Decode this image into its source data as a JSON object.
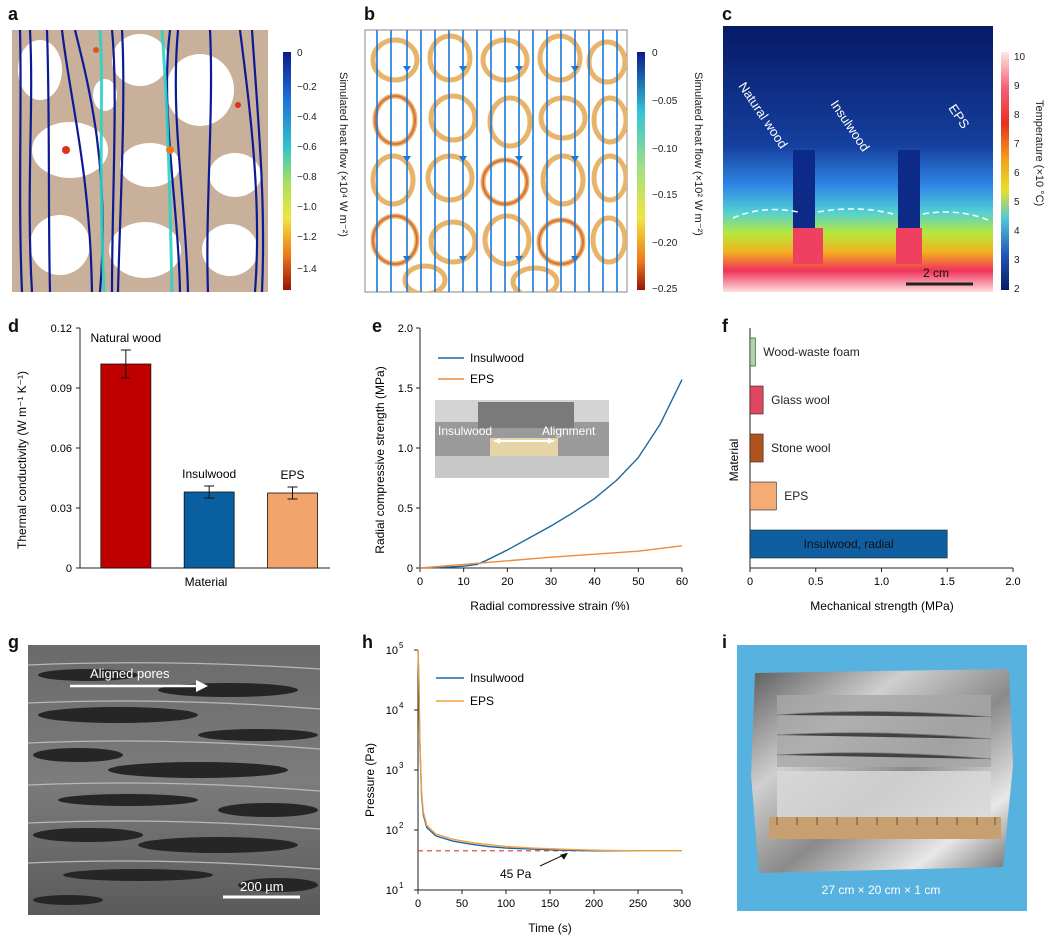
{
  "panel_labels": {
    "a": "a",
    "b": "b",
    "c": "c",
    "d": "d",
    "e": "e",
    "f": "f",
    "g": "g",
    "h": "h",
    "i": "i"
  },
  "panel_a": {
    "colorbar_label": "Simulated heat flow (×10⁴ W m⁻²)",
    "ticks": [
      "0",
      "−0.2",
      "−0.4",
      "−0.6",
      "−0.8",
      "−1.0",
      "−1.2",
      "−1.4"
    ]
  },
  "panel_b": {
    "colorbar_label": "Simulated heat flow (×10² W m⁻²)",
    "ticks": [
      "0",
      "−0.05",
      "−0.10",
      "−0.15",
      "−0.20",
      "−0.25"
    ]
  },
  "panel_c": {
    "labels": [
      "Natural wood",
      "Insulwood",
      "EPS"
    ],
    "scale_bar": "2 cm",
    "colorbar_label": "Temperature (×10 °C)",
    "ticks": [
      "10",
      "9",
      "8",
      "7",
      "6",
      "5",
      "4",
      "3",
      "2"
    ]
  },
  "chart_data": [
    {
      "id": "d",
      "type": "bar",
      "categories": [
        "Natural wood",
        "Insulwood",
        "EPS"
      ],
      "values": [
        0.102,
        0.038,
        0.0375
      ],
      "errors": [
        0.007,
        0.003,
        0.003
      ],
      "colors": [
        "#c00000",
        "#0a5fa0",
        "#f2a46c"
      ],
      "xlabel": "Material",
      "ylabel": "Thermal conductivity (W m⁻¹ K⁻¹)",
      "ylim": [
        0,
        0.12
      ],
      "yticks": [
        "0",
        "0.03",
        "0.06",
        "0.09",
        "0.12"
      ],
      "data_labels": [
        "Natural wood",
        "Insulwood",
        "EPS"
      ]
    },
    {
      "id": "e",
      "type": "line",
      "xlabel": "Radial compressive strain (%)",
      "ylabel": "Radial compressive strength (MPa)",
      "xlim": [
        0,
        60
      ],
      "ylim": [
        0,
        2.0
      ],
      "xticks": [
        "0",
        "10",
        "20",
        "30",
        "40",
        "50",
        "60"
      ],
      "yticks": [
        "0",
        "0.5",
        "1.0",
        "1.5",
        "2.0"
      ],
      "series": [
        {
          "name": "Insulwood",
          "color": "#1a6aa0",
          "x": [
            0,
            5,
            10,
            13,
            15,
            20,
            25,
            30,
            35,
            40,
            45,
            50,
            55,
            60
          ],
          "y": [
            0,
            0.005,
            0.015,
            0.03,
            0.06,
            0.15,
            0.25,
            0.35,
            0.46,
            0.58,
            0.73,
            0.92,
            1.2,
            1.57
          ]
        },
        {
          "name": "EPS",
          "color": "#f08a3c",
          "x": [
            0,
            10,
            20,
            30,
            40,
            50,
            60
          ],
          "y": [
            0,
            0.03,
            0.06,
            0.09,
            0.115,
            0.14,
            0.185
          ]
        }
      ],
      "inset_labels": [
        "Insulwood",
        "Alignment"
      ]
    },
    {
      "id": "f",
      "type": "bar",
      "orientation": "horizontal",
      "categories": [
        "Wood-waste foam",
        "Glass wool",
        "Stone wool",
        "EPS",
        "Insulwood, radial"
      ],
      "values": [
        0.04,
        0.1,
        0.1,
        0.2,
        1.5
      ],
      "colors": [
        "#a7d9a3",
        "#e0475f",
        "#b0521f",
        "#f5ab76",
        "#0f5ea0"
      ],
      "xlabel": "Mechanical strength (MPa)",
      "ylabel": "Material",
      "xlim": [
        0,
        2.0
      ],
      "xticks": [
        "0",
        "0.5",
        "1.0",
        "1.5",
        "2.0"
      ]
    },
    {
      "id": "h",
      "type": "line",
      "yscale": "log",
      "xlabel": "Time (s)",
      "ylabel": "Pressure (Pa)",
      "xlim": [
        0,
        300
      ],
      "ylim": [
        10,
        100000
      ],
      "xticks": [
        "0",
        "50",
        "100",
        "150",
        "200",
        "250",
        "300"
      ],
      "ytick_exponents": [
        "5",
        "4",
        "3",
        "2",
        "1"
      ],
      "reference_line": 45,
      "annotation": "45 Pa",
      "series": [
        {
          "name": "Insulwood",
          "color": "#1a6aa0",
          "x": [
            0,
            1,
            2,
            4,
            6,
            10,
            20,
            40,
            60,
            80,
            100,
            130,
            160,
            200,
            250,
            300
          ],
          "y": [
            100000,
            30000,
            3000,
            400,
            180,
            110,
            80,
            65,
            58,
            53,
            50,
            48,
            46,
            45,
            45,
            45
          ]
        },
        {
          "name": "EPS",
          "color": "#f2a040",
          "x": [
            0,
            1,
            2,
            4,
            6,
            10,
            20,
            40,
            60,
            80,
            100,
            130,
            160,
            200,
            250,
            300
          ],
          "y": [
            100000,
            32000,
            3200,
            450,
            200,
            120,
            86,
            70,
            62,
            57,
            53,
            50,
            48,
            46,
            45,
            45
          ]
        }
      ]
    }
  ],
  "panel_g": {
    "annotation": "Aligned pores",
    "scale_bar": "200 µm"
  },
  "panel_i": {
    "dimensions": "27 cm × 20 cm × 1 cm"
  }
}
